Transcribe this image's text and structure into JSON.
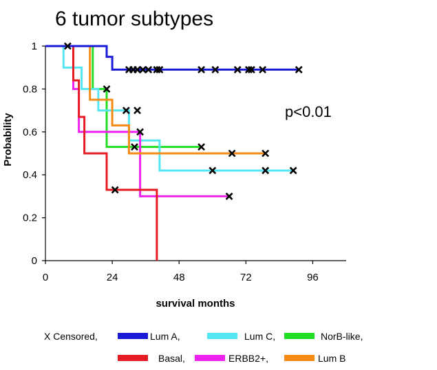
{
  "chart_data": {
    "type": "line",
    "step": true,
    "title": "6 tumor subtypes",
    "xlabel": "survival months",
    "ylabel": "Probability",
    "xlim": [
      0,
      108
    ],
    "ylim": [
      0,
      1
    ],
    "xticks": [
      "0",
      "24",
      "48",
      "72",
      "96"
    ],
    "yticks": [
      "0",
      "0.2",
      "0.4",
      "0.6",
      "0.8",
      "1"
    ],
    "annotation": "p<0.01",
    "legend_placement": "bottom",
    "censored_label": "X Censored,",
    "censor_marker": "x-mark",
    "grid": false,
    "series": [
      {
        "name": "Lum A,",
        "color": "#1a1ad6",
        "points": [
          [
            0,
            1
          ],
          [
            22,
            1
          ],
          [
            22,
            0.95
          ],
          [
            24,
            0.95
          ],
          [
            24,
            0.89
          ],
          [
            91,
            0.89
          ]
        ],
        "censored": [
          [
            30,
            0.89
          ],
          [
            31.5,
            0.89
          ],
          [
            33,
            0.89
          ],
          [
            35,
            0.89
          ],
          [
            37,
            0.89
          ],
          [
            40,
            0.89
          ],
          [
            41,
            0.89
          ],
          [
            56,
            0.89
          ],
          [
            61,
            0.89
          ],
          [
            69,
            0.89
          ],
          [
            73,
            0.89
          ],
          [
            74,
            0.89
          ],
          [
            78,
            0.89
          ],
          [
            91,
            0.89
          ]
        ]
      },
      {
        "name": "Lum C,",
        "color": "#55e6f4",
        "points": [
          [
            0,
            1
          ],
          [
            6.5,
            1
          ],
          [
            6.5,
            0.9
          ],
          [
            13,
            0.9
          ],
          [
            13,
            0.8
          ],
          [
            19,
            0.8
          ],
          [
            19,
            0.7
          ],
          [
            30,
            0.7
          ],
          [
            30,
            0.56
          ],
          [
            41,
            0.56
          ],
          [
            41,
            0.42
          ],
          [
            89,
            0.42
          ]
        ],
        "censored": [
          [
            29,
            0.7
          ],
          [
            33,
            0.7
          ],
          [
            60,
            0.42
          ],
          [
            79,
            0.42
          ],
          [
            89,
            0.42
          ]
        ]
      },
      {
        "name": "NorB-like,",
        "color": "#22dd22",
        "points": [
          [
            0,
            1
          ],
          [
            17,
            1
          ],
          [
            17,
            0.8
          ],
          [
            22,
            0.8
          ],
          [
            22,
            0.53
          ],
          [
            56,
            0.53
          ]
        ],
        "censored": [
          [
            22,
            0.8
          ],
          [
            32,
            0.53
          ],
          [
            56,
            0.53
          ]
        ]
      },
      {
        "name": "Basal,",
        "color": "#e61c24",
        "points": [
          [
            0,
            1
          ],
          [
            10,
            1
          ],
          [
            10,
            0.84
          ],
          [
            12,
            0.84
          ],
          [
            12,
            0.67
          ],
          [
            14,
            0.67
          ],
          [
            14,
            0.5
          ],
          [
            22,
            0.5
          ],
          [
            22,
            0.33
          ],
          [
            40,
            0.33
          ],
          [
            40,
            0
          ]
        ],
        "censored": [
          [
            25,
            0.33
          ]
        ]
      },
      {
        "name": "ERBB2+,",
        "color": "#ee22ee",
        "points": [
          [
            0,
            1
          ],
          [
            10,
            1
          ],
          [
            10,
            0.8
          ],
          [
            12,
            0.8
          ],
          [
            12,
            0.6
          ],
          [
            34,
            0.6
          ],
          [
            34,
            0.3
          ],
          [
            66,
            0.3
          ]
        ],
        "censored": [
          [
            34,
            0.6
          ],
          [
            66,
            0.3
          ]
        ]
      },
      {
        "name": "Lum B",
        "color": "#f58b14",
        "points": [
          [
            0,
            1
          ],
          [
            16,
            1
          ],
          [
            16,
            0.75
          ],
          [
            24,
            0.75
          ],
          [
            24,
            0.63
          ],
          [
            30,
            0.63
          ],
          [
            30,
            0.5
          ],
          [
            79,
            0.5
          ]
        ],
        "censored": [
          [
            8,
            1
          ],
          [
            67,
            0.5
          ],
          [
            79,
            0.5
          ]
        ]
      }
    ],
    "legend_rows": [
      [
        "Lum A,",
        "Lum C,",
        "NorB-like,"
      ],
      [
        "Basal,",
        "ERBB2+,",
        "Lum B"
      ]
    ]
  }
}
